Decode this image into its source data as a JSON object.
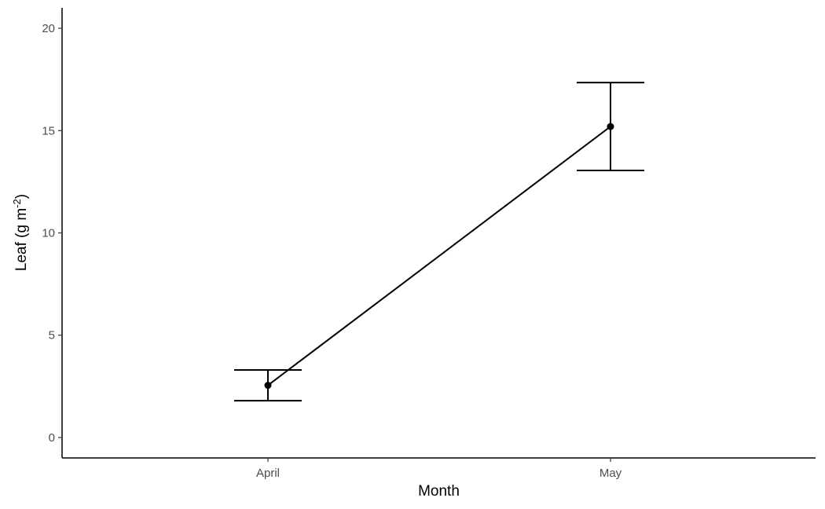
{
  "chart_data": {
    "type": "line",
    "xlabel": "Month",
    "ylabel": {
      "main": "Leaf (g m",
      "superscript": "-2",
      "close": ")"
    },
    "categories": [
      "April",
      "May"
    ],
    "series": [
      {
        "values": [
          2.55,
          15.2
        ],
        "error_low": [
          1.8,
          13.05
        ],
        "error_high": [
          3.3,
          17.35
        ]
      }
    ],
    "ylim": [
      -1,
      21
    ],
    "yticks": [
      0,
      5,
      10,
      15,
      20
    ],
    "ytick_labels": [
      "0",
      "5",
      "10",
      "15",
      "20"
    ],
    "grid": false,
    "legend": "none",
    "line_color": "#000000"
  }
}
